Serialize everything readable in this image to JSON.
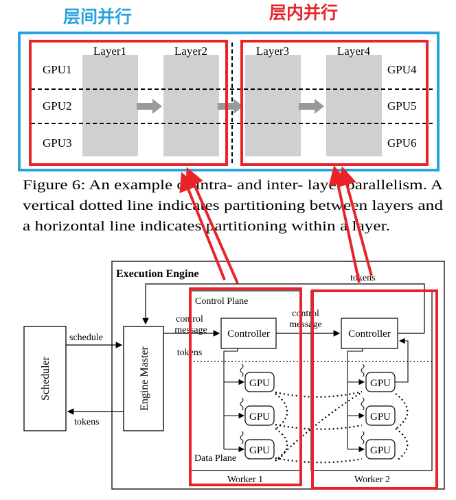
{
  "annotations": {
    "inter_layer_label": "层间并行",
    "intra_layer_label": "层内并行",
    "colors": {
      "blue": "#29a3e0",
      "red": "#e8242a"
    }
  },
  "figure6": {
    "layers": [
      "Layer1",
      "Layer2",
      "Layer3",
      "Layer4"
    ],
    "gpus_left": [
      "GPU1",
      "GPU2",
      "GPU3"
    ],
    "gpus_right": [
      "GPU4",
      "GPU5",
      "GPU6"
    ],
    "caption_lines": [
      "Figure 6: An example of intra- and inter- layer parallelism. A",
      "vertical dotted line indicates partitioning between layers and",
      "a horizontal line indicates partitioning within a layer."
    ]
  },
  "engine": {
    "title": "Execution Engine",
    "scheduler": "Scheduler",
    "engine_master": "Engine Master",
    "schedule_label": "schedule",
    "tokens_left_label": "tokens",
    "control_plane": "Control Plane",
    "data_plane": "Data Plane",
    "control_message_1": [
      "control",
      "message"
    ],
    "control_message_2": [
      "control",
      "message"
    ],
    "tokens_mid_label": "tokens",
    "tokens_top_label": "tokens",
    "controller": "Controller",
    "gpu": "GPU",
    "worker1": "Worker 1",
    "worker2": "Worker 2"
  }
}
